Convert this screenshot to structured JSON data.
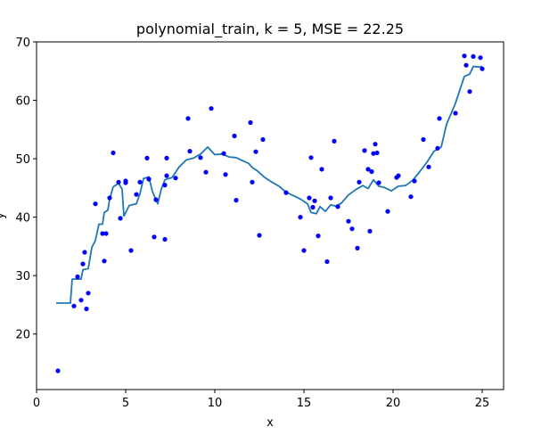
{
  "chart_data": {
    "type": "scatter",
    "title": "polynomial_train, k = 5, MSE = 22.25",
    "xlabel": "x",
    "ylabel": "y",
    "xlim": [
      0,
      26.2
    ],
    "ylim": [
      10.5,
      70
    ],
    "xticks": [
      0,
      5,
      10,
      15,
      20,
      25
    ],
    "yticks": [
      20,
      30,
      40,
      50,
      60,
      70
    ],
    "grid": false,
    "colors": {
      "points": "#0000ff",
      "line": "#1f77b4"
    },
    "series": [
      {
        "type": "scatter",
        "x": [
          1.2,
          2.1,
          2.3,
          2.5,
          2.6,
          2.7,
          2.8,
          2.9,
          3.3,
          3.7,
          3.8,
          3.9,
          4.1,
          4.3,
          4.6,
          4.7,
          5.0,
          5.0,
          5.3,
          5.6,
          5.8,
          6.2,
          6.3,
          6.6,
          6.7,
          7.2,
          7.2,
          7.3,
          7.3,
          7.8,
          8.5,
          8.6,
          9.2,
          9.5,
          9.8,
          10.5,
          10.6,
          11.1,
          11.2,
          12.0,
          12.1,
          12.3,
          12.5,
          12.7,
          14.0,
          14.8,
          15.0,
          15.3,
          15.4,
          15.5,
          15.6,
          15.8,
          16.0,
          16.3,
          16.5,
          16.7,
          16.9,
          17.5,
          17.7,
          18.0,
          18.1,
          18.4,
          18.6,
          18.7,
          18.8,
          18.9,
          19.0,
          19.1,
          19.2,
          19.7,
          20.2,
          20.3,
          21.0,
          21.2,
          21.7,
          22.0,
          22.5,
          22.6,
          23.5,
          24.0,
          24.1,
          24.3,
          24.5,
          24.9,
          25.0
        ],
        "y": [
          13.7,
          24.8,
          29.8,
          25.8,
          32.0,
          34.0,
          24.3,
          27.0,
          42.3,
          37.2,
          32.5,
          37.2,
          43.3,
          51.0,
          46.0,
          39.8,
          45.9,
          46.2,
          34.3,
          43.9,
          46.0,
          50.1,
          46.5,
          36.6,
          43.0,
          36.2,
          45.5,
          47.1,
          50.1,
          46.7,
          56.9,
          51.3,
          50.2,
          47.7,
          58.6,
          50.9,
          47.3,
          53.9,
          42.9,
          56.2,
          46.0,
          51.2,
          36.9,
          53.3,
          44.2,
          40.0,
          34.3,
          43.3,
          50.2,
          41.7,
          42.8,
          36.8,
          48.2,
          32.4,
          43.3,
          53.0,
          41.8,
          39.3,
          38.0,
          34.7,
          46.0,
          51.4,
          48.2,
          37.6,
          47.8,
          50.9,
          52.5,
          51.0,
          45.9,
          41.0,
          46.8,
          47.1,
          43.5,
          46.2,
          53.3,
          48.6,
          51.8,
          56.9,
          57.8,
          67.6,
          66.0,
          61.5,
          67.5,
          67.3,
          65.4
        ]
      },
      {
        "type": "line",
        "x": [
          1.1,
          1.9,
          2.0,
          2.5,
          2.6,
          2.9,
          3.1,
          3.3,
          3.5,
          3.7,
          3.8,
          4.0,
          4.1,
          4.3,
          4.6,
          4.8,
          4.9,
          5.2,
          5.6,
          5.8,
          6.0,
          6.3,
          6.5,
          6.8,
          7.0,
          7.2,
          7.6,
          8.0,
          8.4,
          8.8,
          9.2,
          9.6,
          10.0,
          10.4,
          10.8,
          11.2,
          11.6,
          11.9,
          12.1,
          12.4,
          12.8,
          13.2,
          13.6,
          14.0,
          14.4,
          14.8,
          15.2,
          15.4,
          15.7,
          15.9,
          16.2,
          16.5,
          16.8,
          17.1,
          17.5,
          17.9,
          18.3,
          18.6,
          18.9,
          19.2,
          19.5,
          19.9,
          20.3,
          20.7,
          21.1,
          21.5,
          21.9,
          22.3,
          22.7,
          23.0,
          23.5,
          24.0,
          24.3,
          24.5,
          24.8,
          25.0
        ],
        "y": [
          25.3,
          25.3,
          29.4,
          29.4,
          31.0,
          31.2,
          34.8,
          36.0,
          38.8,
          38.8,
          40.8,
          41.2,
          43.1,
          45.2,
          45.8,
          44.8,
          40.2,
          42.0,
          42.3,
          44.0,
          46.6,
          46.9,
          44.4,
          42.3,
          44.8,
          46.4,
          46.8,
          48.6,
          49.8,
          50.1,
          50.8,
          52.0,
          50.7,
          50.8,
          50.3,
          50.2,
          49.6,
          49.2,
          48.5,
          47.9,
          46.8,
          46.0,
          45.3,
          44.3,
          43.7,
          43.1,
          42.3,
          40.8,
          40.6,
          41.8,
          41.0,
          42.1,
          41.9,
          42.4,
          43.8,
          44.7,
          45.4,
          44.9,
          46.4,
          45.3,
          45.1,
          44.5,
          45.3,
          45.4,
          46.3,
          47.8,
          49.4,
          51.3,
          52.0,
          55.9,
          59.5,
          64.1,
          64.5,
          65.8,
          65.7,
          65.8
        ]
      }
    ]
  }
}
